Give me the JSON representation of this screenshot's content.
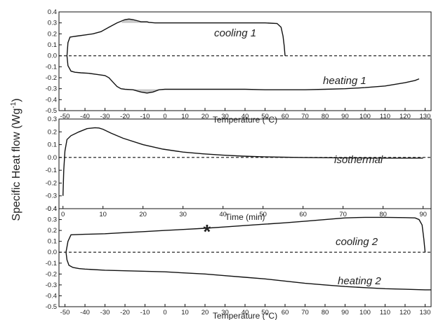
{
  "ylabel_main": "Specific Heat flow",
  "ylabel_unit": "(Wg",
  "ylabel_exp": "-1",
  "ylabel_close": ")",
  "chart_data": [
    {
      "type": "line",
      "xlabel": "Temperature (°C)",
      "xlim": [
        -53,
        133
      ],
      "ylim": [
        -0.5,
        0.4
      ],
      "xticks": [
        -50,
        -40,
        -30,
        -20,
        -10,
        0,
        10,
        20,
        30,
        40,
        50,
        60,
        70,
        80,
        90,
        100,
        110,
        120,
        130
      ],
      "yticks": [
        -0.5,
        -0.4,
        -0.3,
        -0.2,
        -0.1,
        0.0,
        0.1,
        0.2,
        0.3,
        0.4
      ],
      "series": [
        {
          "label": "cooling 1",
          "x": [
            60,
            59.6,
            59,
            58,
            56,
            50,
            40,
            30,
            20,
            10,
            0,
            -5,
            -8,
            -9,
            -10,
            -12,
            -14,
            -16,
            -18,
            -20,
            -24,
            -28,
            -32,
            -36,
            -40,
            -44,
            -46,
            -47.5,
            -48.5,
            -49
          ],
          "y": [
            0.0,
            0.09,
            0.18,
            0.26,
            0.295,
            0.3,
            0.3,
            0.3,
            0.3,
            0.3,
            0.3,
            0.3,
            0.305,
            0.31,
            0.31,
            0.31,
            0.32,
            0.33,
            0.335,
            0.33,
            0.3,
            0.26,
            0.22,
            0.2,
            0.19,
            0.18,
            0.175,
            0.17,
            0.12,
            0.0
          ]
        },
        {
          "label": "heating 1",
          "x": [
            -49,
            -48.5,
            -47,
            -45,
            -42,
            -38,
            -34,
            -30,
            -28,
            -26,
            -24,
            -22,
            -20,
            -16,
            -12,
            -9,
            -6,
            -3,
            0,
            10,
            20,
            30,
            40,
            50,
            60,
            70,
            80,
            90,
            100,
            110,
            120,
            125,
            127
          ],
          "y": [
            0.0,
            -0.09,
            -0.14,
            -0.15,
            -0.155,
            -0.16,
            -0.17,
            -0.18,
            -0.2,
            -0.24,
            -0.28,
            -0.3,
            -0.305,
            -0.31,
            -0.33,
            -0.34,
            -0.33,
            -0.31,
            -0.305,
            -0.305,
            -0.305,
            -0.305,
            -0.305,
            -0.31,
            -0.31,
            -0.31,
            -0.305,
            -0.3,
            -0.29,
            -0.275,
            -0.245,
            -0.225,
            -0.21
          ]
        }
      ],
      "annotations": [
        "cooling 1",
        "heating 1"
      ]
    },
    {
      "type": "line",
      "xlabel": "Time (min)",
      "xlim": [
        -1,
        92
      ],
      "ylim": [
        -0.4,
        0.3
      ],
      "xticks": [
        0,
        10,
        20,
        30,
        40,
        50,
        60,
        70,
        80,
        90
      ],
      "yticks": [
        -0.4,
        -0.3,
        -0.2,
        -0.1,
        0.0,
        0.1,
        0.2,
        0.3
      ],
      "series": [
        {
          "label": "isothermal",
          "x": [
            0,
            0.2,
            0.5,
            1,
            2,
            4,
            6,
            8,
            9,
            10,
            12,
            15,
            20,
            25,
            30,
            35,
            40,
            45,
            50,
            55,
            60,
            65,
            70,
            75,
            80,
            85,
            90
          ],
          "y": [
            -0.3,
            -0.1,
            0.05,
            0.14,
            0.17,
            0.2,
            0.225,
            0.232,
            0.23,
            0.22,
            0.19,
            0.15,
            0.1,
            0.065,
            0.042,
            0.028,
            0.018,
            0.01,
            0.005,
            0.002,
            0.0,
            -0.002,
            -0.003,
            -0.004,
            -0.005,
            -0.005,
            -0.005
          ]
        }
      ],
      "annotations": [
        "isothermal"
      ]
    },
    {
      "type": "line",
      "xlabel": "Temperature (°C)",
      "xlim": [
        -53,
        133
      ],
      "ylim": [
        -0.5,
        0.4
      ],
      "xticks": [
        -50,
        -40,
        -30,
        -20,
        -10,
        0,
        10,
        20,
        30,
        40,
        50,
        60,
        70,
        80,
        90,
        100,
        110,
        120,
        130
      ],
      "yticks": [
        -0.5,
        -0.4,
        -0.3,
        -0.2,
        -0.1,
        0.0,
        0.1,
        0.2,
        0.3,
        0.4
      ],
      "series": [
        {
          "label": "cooling 2",
          "x": [
            130,
            129.4,
            128.5,
            127,
            125,
            120,
            110,
            100,
            90,
            80,
            70,
            60,
            50,
            40,
            30,
            20,
            10,
            0,
            -10,
            -20,
            -30,
            -40,
            -47,
            -48.5,
            -49.5
          ],
          "y": [
            0.0,
            0.12,
            0.25,
            0.3,
            0.315,
            0.318,
            0.32,
            0.32,
            0.315,
            0.3,
            0.285,
            0.27,
            0.258,
            0.245,
            0.232,
            0.22,
            0.21,
            0.2,
            0.19,
            0.18,
            0.17,
            0.165,
            0.16,
            0.1,
            0.0
          ]
        },
        {
          "label": "heating 2",
          "x": [
            -49.5,
            -49,
            -48,
            -46,
            -43,
            -40,
            -30,
            -20,
            -10,
            0,
            10,
            20,
            30,
            40,
            50,
            60,
            70,
            80,
            90,
            100,
            110,
            120,
            130,
            133
          ],
          "y": [
            0.0,
            -0.07,
            -0.12,
            -0.14,
            -0.15,
            -0.155,
            -0.165,
            -0.17,
            -0.175,
            -0.18,
            -0.19,
            -0.2,
            -0.215,
            -0.23,
            -0.245,
            -0.265,
            -0.285,
            -0.3,
            -0.315,
            -0.325,
            -0.335,
            -0.34,
            -0.345,
            -0.345
          ]
        }
      ],
      "marker": {
        "label": "*",
        "x": 21,
        "y": 0.22
      },
      "annotations": [
        "cooling 2",
        "heating 2"
      ]
    }
  ]
}
